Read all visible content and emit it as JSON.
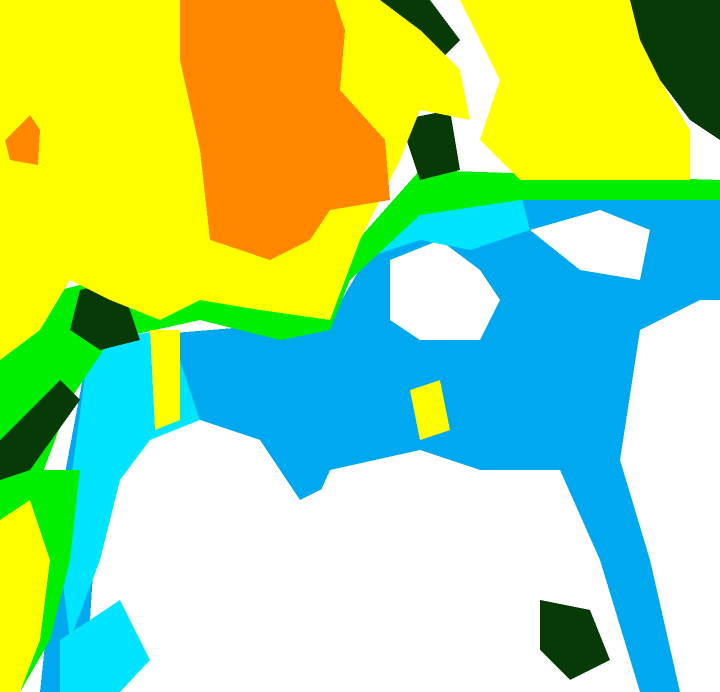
{
  "map": {
    "type": "classified-raster",
    "palette": {
      "class_yellow": "#ffff00",
      "class_orange": "#ff8800",
      "class_green": "#00ee00",
      "class_dark_green": "#073a07",
      "class_cyan": "#00e5ff",
      "class_blue": "#00a8f0",
      "class_white": "#ffffff"
    }
  }
}
